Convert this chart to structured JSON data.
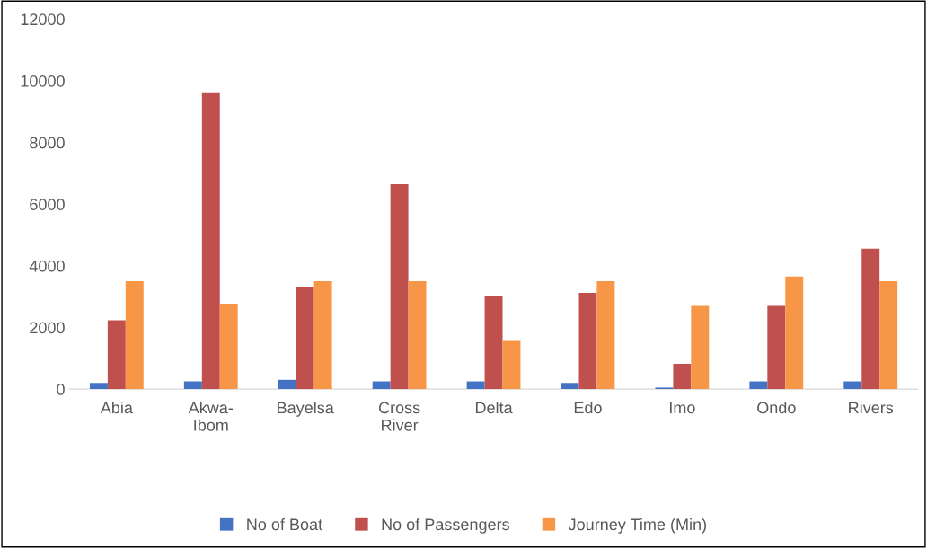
{
  "chart_data": {
    "type": "bar",
    "categories": [
      "Abia",
      "Akwa-\nIbom",
      "Bayelsa",
      "Cross\nRiver",
      "Delta",
      "Edo",
      "Imo",
      "Ondo",
      "Rivers"
    ],
    "series": [
      {
        "name": "No of Boat",
        "color": "#4472c4",
        "values": [
          200,
          250,
          300,
          250,
          250,
          200,
          50,
          250,
          250
        ]
      },
      {
        "name": "No of Passengers",
        "color": "#c0504d",
        "values": [
          2230,
          9630,
          3320,
          6650,
          3030,
          3120,
          820,
          2700,
          4560
        ]
      },
      {
        "name": "Journey Time (Min)",
        "color": "#f79646",
        "values": [
          3500,
          2770,
          3500,
          3500,
          1560,
          3500,
          2700,
          3650,
          3500
        ]
      }
    ],
    "ylim": [
      0,
      12000
    ],
    "yticks": [
      0,
      2000,
      4000,
      6000,
      8000,
      10000,
      12000
    ],
    "grid": false,
    "legend": "bottom"
  }
}
